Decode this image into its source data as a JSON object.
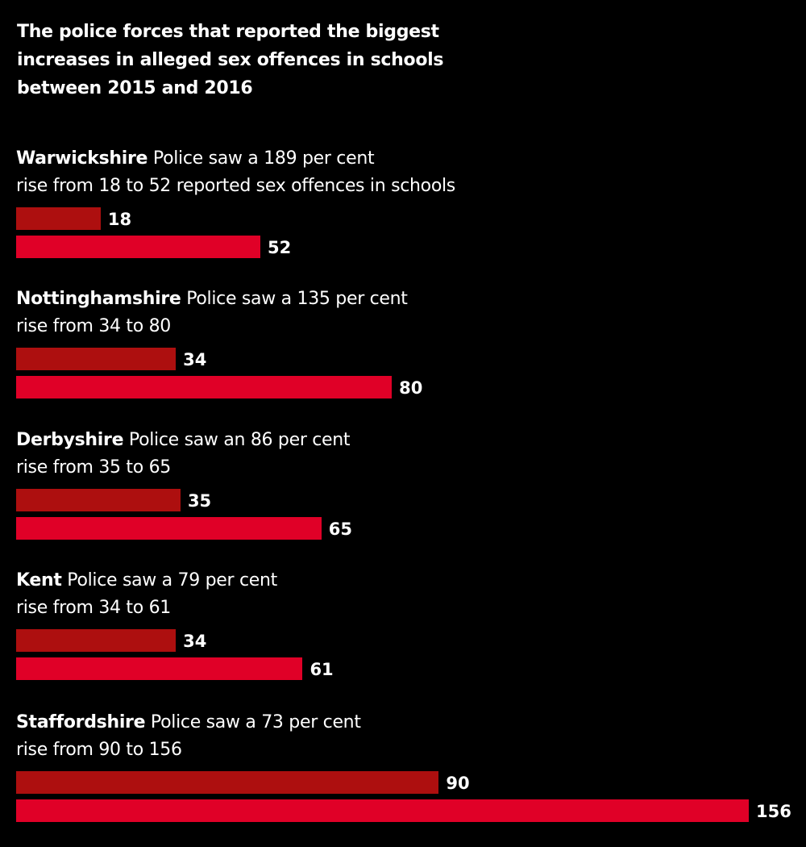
{
  "title": "The police forces that reported the biggest increases in alleged sex offences in schools between 2015 and 2016",
  "colors": {
    "background": "#000000",
    "year_2015": "#ad0f0f",
    "year_2016": "#e00027",
    "text": "#ffffff"
  },
  "chart_data": {
    "type": "bar",
    "orientation": "horizontal",
    "title": "The police forces that reported the biggest increases in alleged sex offences in schools between 2015 and 2016",
    "xlim": [
      0,
      156
    ],
    "grid": false,
    "categories": [
      "Warwickshire",
      "Nottinghamshire",
      "Derbyshire",
      "Kent",
      "Staffordshire"
    ],
    "series": [
      {
        "values": [
          18,
          34,
          35,
          34,
          90
        ],
        "color": "#ad0f0f"
      },
      {
        "values": [
          52,
          80,
          65,
          61,
          156
        ],
        "color": "#e00027"
      }
    ],
    "groups": [
      {
        "force": "Warwickshire",
        "line1": " Police saw a 189 per cent",
        "line2": "rise from 18 to 52 reported sex offences in schools",
        "v2015": 18,
        "v2016": 52,
        "label2015": "18",
        "label2016": "52"
      },
      {
        "force": "Nottinghamshire",
        "line1": " Police saw a 135 per cent",
        "line2": "rise from 34 to 80",
        "v2015": 34,
        "v2016": 80,
        "label2015": "34",
        "label2016": "80"
      },
      {
        "force": "Derbyshire",
        "line1": " Police saw an 86 per cent",
        "line2": "rise from 35 to 65",
        "v2015": 35,
        "v2016": 65,
        "label2015": "35",
        "label2016": "65"
      },
      {
        "force": "Kent",
        "line1": " Police saw a 79 per cent",
        "line2": "rise from 34 to 61",
        "v2015": 34,
        "v2016": 61,
        "label2015": "34",
        "label2016": "61"
      },
      {
        "force": "Staffordshire",
        "line1": " Police saw a 73 per cent",
        "line2": "rise from 90 to 156",
        "v2015": 90,
        "v2016": 156,
        "label2015": "90",
        "label2016": "156"
      }
    ]
  }
}
